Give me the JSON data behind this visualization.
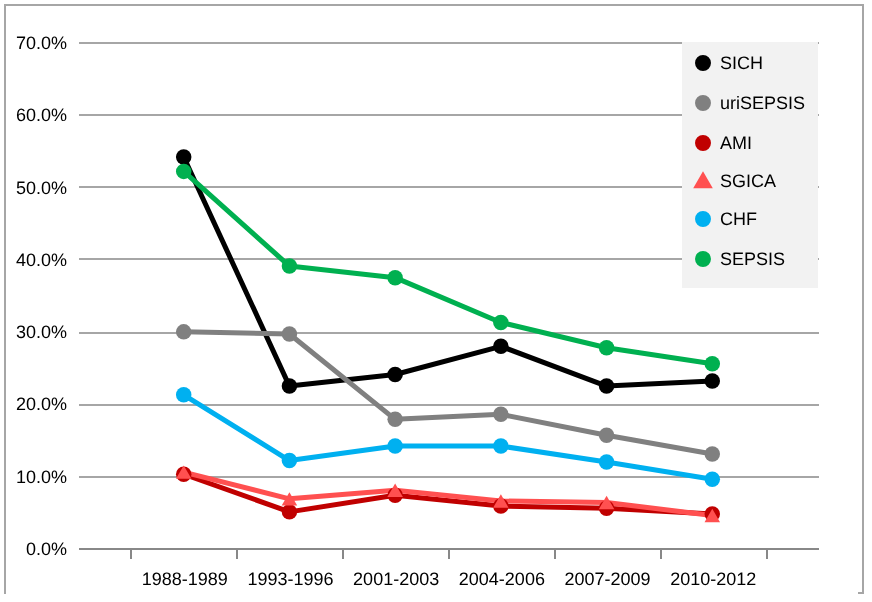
{
  "chart_data": {
    "type": "line",
    "categories": [
      "1988-1989",
      "1993-1996",
      "2001-2003",
      "2004-2006",
      "2007-2009",
      "2010-2012"
    ],
    "series": [
      {
        "name": "SICH",
        "color": "#000000",
        "values": [
          54.1,
          22.4,
          24.0,
          27.9,
          22.4,
          23.1
        ]
      },
      {
        "name": "uriSEPSIS",
        "color": "#808080",
        "values": [
          29.9,
          29.6,
          17.8,
          18.5,
          15.6,
          13.0
        ]
      },
      {
        "name": "AMI",
        "color": "#c00000",
        "values": [
          10.2,
          5.0,
          7.3,
          5.8,
          5.5,
          4.7
        ]
      },
      {
        "name": "SGICA",
        "color": "#ff5050",
        "marker": "triangle",
        "values": [
          10.5,
          6.8,
          8.0,
          6.5,
          6.3,
          4.5
        ]
      },
      {
        "name": "CHF",
        "color": "#00b0f0",
        "values": [
          21.2,
          12.1,
          14.1,
          14.1,
          11.9,
          9.5
        ]
      },
      {
        "name": "SEPSIS",
        "color": "#00b050",
        "values": [
          52.1,
          39.0,
          37.4,
          31.2,
          27.7,
          25.5
        ]
      }
    ],
    "marker": "circle",
    "line_style": "solid",
    "grid": "y",
    "legend": "top right",
    "ylim": [
      0,
      70
    ],
    "yticks": [
      {
        "value": 0,
        "label": "0.0%"
      },
      {
        "value": 10,
        "label": "10.0%"
      },
      {
        "value": 20,
        "label": "20.0%"
      },
      {
        "value": 30,
        "label": "30.0%"
      },
      {
        "value": 40,
        "label": "40.0%"
      },
      {
        "value": 50,
        "label": "50.0%"
      },
      {
        "value": 60,
        "label": "60.0%"
      },
      {
        "value": 70,
        "label": "70.0%"
      }
    ]
  }
}
